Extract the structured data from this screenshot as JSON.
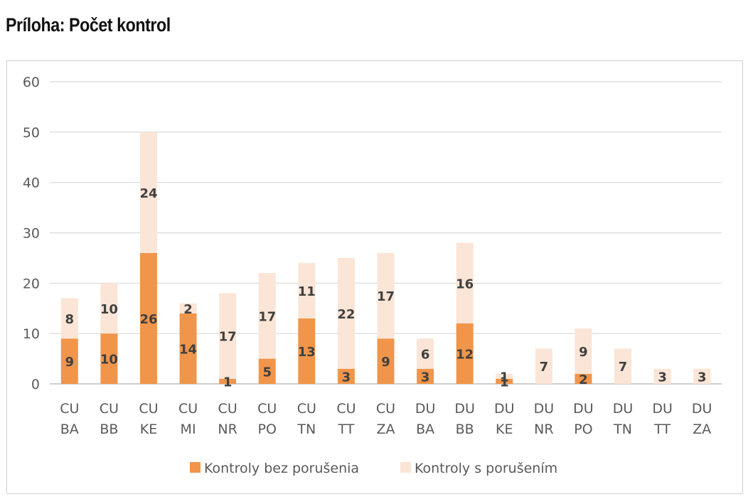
{
  "page": {
    "title": "Príloha: Počet kontrol"
  },
  "chart_data": {
    "type": "bar",
    "stacked": true,
    "title": "",
    "xlabel": "",
    "ylabel": "",
    "ylim": [
      0,
      60
    ],
    "yticks": [
      0,
      10,
      20,
      30,
      40,
      50,
      60
    ],
    "grid": true,
    "legend_position": "bottom",
    "categories": [
      [
        "CU",
        "BA"
      ],
      [
        "CU",
        "BB"
      ],
      [
        "CU",
        "KE"
      ],
      [
        "CU",
        "MI"
      ],
      [
        "CU",
        "NR"
      ],
      [
        "CU",
        "PO"
      ],
      [
        "CU",
        "TN"
      ],
      [
        "CU",
        "TT"
      ],
      [
        "CU",
        "ZA"
      ],
      [
        "DU",
        "BA"
      ],
      [
        "DU",
        "BB"
      ],
      [
        "DU",
        "KE"
      ],
      [
        "DU",
        "NR"
      ],
      [
        "DU",
        "PO"
      ],
      [
        "DU",
        "TN"
      ],
      [
        "DU",
        "TT"
      ],
      [
        "DU",
        "ZA"
      ]
    ],
    "series": [
      {
        "name": "Kontroly bez porušenia",
        "color": "#f0954a",
        "values": [
          9,
          10,
          26,
          14,
          1,
          5,
          13,
          3,
          9,
          3,
          12,
          1,
          0,
          2,
          0,
          0,
          0
        ]
      },
      {
        "name": "Kontroly s porušením",
        "color": "#fbe5d6",
        "values": [
          8,
          10,
          24,
          2,
          17,
          17,
          11,
          22,
          17,
          6,
          16,
          1,
          7,
          9,
          7,
          3,
          3
        ]
      }
    ]
  }
}
